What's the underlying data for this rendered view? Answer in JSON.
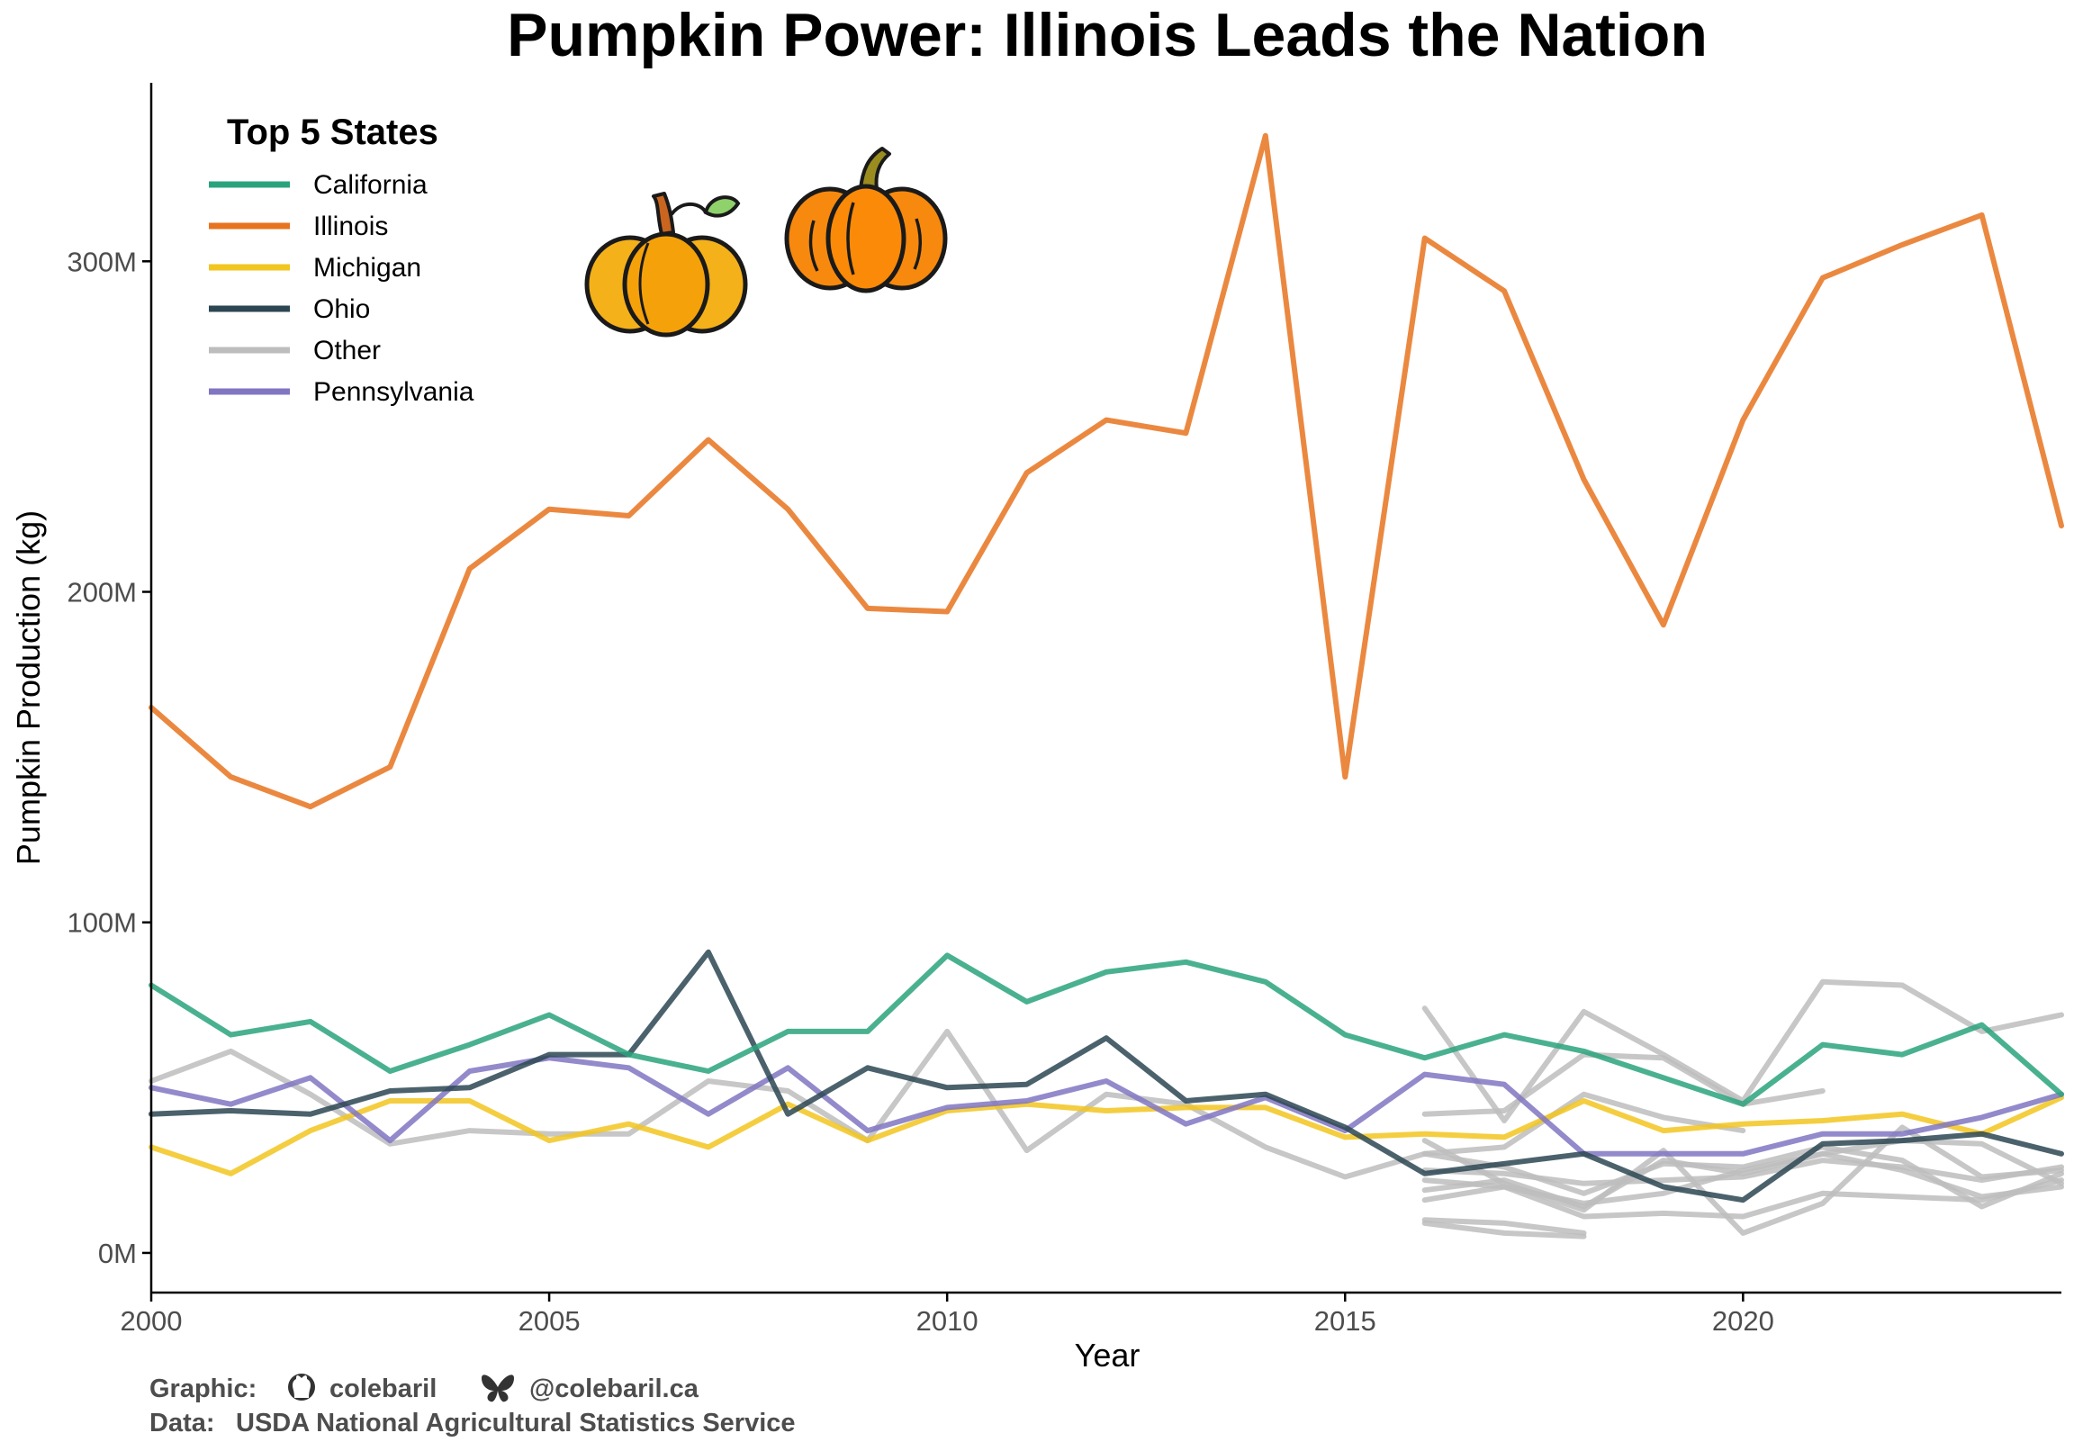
{
  "chart_data": {
    "type": "line",
    "title": "Pumpkin Power: Illinois Leads the Nation",
    "xlabel": "Year",
    "ylabel": "Pumpkin Production (kg)",
    "xlim": [
      2000,
      2024
    ],
    "ylim": [
      -12,
      354
    ],
    "x_ticks": [
      2000,
      2005,
      2010,
      2015,
      2020
    ],
    "x_tick_labels": [
      "2000",
      "2005",
      "2010",
      "2015",
      "2020"
    ],
    "y_ticks": [
      0,
      100,
      200,
      300
    ],
    "y_tick_labels": [
      "0M",
      "100M",
      "200M",
      "300M"
    ],
    "units": "million kg",
    "legend_title": "Top 5 States",
    "legend_position": "top-left",
    "series": [
      {
        "name": "California",
        "color": "#2aa37c",
        "x": [
          2000,
          2001,
          2002,
          2003,
          2004,
          2005,
          2006,
          2007,
          2008,
          2009,
          2010,
          2011,
          2012,
          2013,
          2014,
          2015,
          2016,
          2017,
          2018,
          2019,
          2020,
          2021,
          2022,
          2023,
          2024
        ],
        "y": [
          81,
          66,
          70,
          55,
          63,
          72,
          60,
          55,
          67,
          67,
          90,
          76,
          85,
          88,
          82,
          66,
          59,
          66,
          61,
          53,
          45,
          63,
          60,
          69,
          48
        ]
      },
      {
        "name": "Illinois",
        "color": "#e8731e",
        "x": [
          2000,
          2001,
          2002,
          2003,
          2004,
          2005,
          2006,
          2007,
          2008,
          2009,
          2010,
          2011,
          2012,
          2013,
          2014,
          2015,
          2016,
          2017,
          2018,
          2019,
          2020,
          2021,
          2022,
          2023,
          2024
        ],
        "y": [
          165,
          144,
          135,
          147,
          207,
          225,
          223,
          246,
          225,
          195,
          194,
          236,
          252,
          248,
          338,
          144,
          307,
          291,
          234,
          190,
          252,
          295,
          305,
          314,
          220
        ]
      },
      {
        "name": "Michigan",
        "color": "#f2c61f",
        "x": [
          2000,
          2001,
          2002,
          2003,
          2004,
          2005,
          2006,
          2007,
          2008,
          2009,
          2010,
          2011,
          2012,
          2013,
          2014,
          2015,
          2016,
          2017,
          2018,
          2019,
          2020,
          2021,
          2022,
          2023,
          2024
        ],
        "y": [
          32,
          24,
          37,
          46,
          46,
          34,
          39,
          32,
          45,
          34,
          43,
          45,
          43,
          44,
          44,
          35,
          36,
          35,
          46,
          37,
          39,
          40,
          42,
          36,
          47
        ]
      },
      {
        "name": "Ohio",
        "color": "#2c4652",
        "x": [
          2000,
          2001,
          2002,
          2003,
          2004,
          2005,
          2006,
          2007,
          2008,
          2009,
          2010,
          2011,
          2012,
          2013,
          2014,
          2015,
          2016,
          2017,
          2018,
          2019,
          2020,
          2021,
          2022,
          2023,
          2024
        ],
        "y": [
          42,
          43,
          42,
          49,
          50,
          60,
          60,
          91,
          42,
          56,
          50,
          51,
          65,
          46,
          48,
          38,
          24,
          27,
          30,
          20,
          16,
          33,
          34,
          36,
          30
        ]
      },
      {
        "name": "Pennsylvania",
        "color": "#8076c2",
        "x": [
          2000,
          2001,
          2002,
          2003,
          2004,
          2005,
          2006,
          2007,
          2008,
          2009,
          2010,
          2011,
          2012,
          2013,
          2014,
          2015,
          2016,
          2017,
          2018,
          2019,
          2020,
          2021,
          2022,
          2023,
          2024
        ],
        "y": [
          50,
          45,
          53,
          34,
          55,
          59,
          56,
          42,
          56,
          37,
          44,
          46,
          52,
          39,
          47,
          37,
          54,
          51,
          30,
          30,
          30,
          36,
          36,
          41,
          48
        ]
      }
    ],
    "other_series": {
      "name": "Other",
      "color": "#bdbdbd",
      "lines": [
        {
          "x": [
            2000,
            2001,
            2002,
            2003,
            2004,
            2005,
            2006,
            2007,
            2008,
            2009,
            2010,
            2011,
            2012,
            2013,
            2014,
            2015,
            2016,
            2017,
            2018,
            2019,
            2020
          ],
          "y": [
            52,
            61,
            48,
            33,
            37,
            36,
            36,
            52,
            49,
            34,
            67,
            31,
            48,
            45,
            32,
            23,
            30,
            32,
            48,
            41,
            37
          ]
        },
        {
          "x": [
            2016,
            2017,
            2018,
            2019,
            2020,
            2021
          ],
          "y": [
            42,
            43,
            60,
            59,
            45,
            49
          ]
        },
        {
          "x": [
            2016,
            2017,
            2018,
            2019,
            2020,
            2021,
            2022,
            2023,
            2024
          ],
          "y": [
            74,
            40,
            73,
            60,
            46,
            82,
            81,
            67,
            72
          ]
        },
        {
          "x": [
            2016,
            2017,
            2018,
            2019,
            2020,
            2021,
            2022,
            2023,
            2024
          ],
          "y": [
            34,
            21,
            13,
            31,
            6,
            15,
            38,
            23,
            25
          ]
        },
        {
          "x": [
            2016,
            2017,
            2018
          ],
          "y": [
            10,
            9,
            6
          ]
        },
        {
          "x": [
            2016,
            2017,
            2018
          ],
          "y": [
            9,
            6,
            5
          ]
        },
        {
          "x": [
            2016,
            2017,
            2018,
            2019,
            2020,
            2021,
            2022,
            2023,
            2024
          ],
          "y": [
            25,
            24,
            21,
            22,
            23,
            28,
            26,
            22,
            26
          ]
        },
        {
          "x": [
            2016,
            2017,
            2018,
            2019,
            2020,
            2021,
            2022,
            2023,
            2024
          ],
          "y": [
            16,
            20,
            11,
            12,
            11,
            18,
            17,
            16,
            22
          ]
        },
        {
          "x": [
            2016,
            2017,
            2018,
            2019,
            2020,
            2021,
            2022,
            2023,
            2024
          ],
          "y": [
            22,
            20,
            15,
            18,
            25,
            30,
            34,
            33,
            21
          ]
        },
        {
          "x": [
            2016,
            2017,
            2018,
            2019,
            2020,
            2021,
            2022,
            2023,
            2024
          ],
          "y": [
            30,
            26,
            18,
            27,
            26,
            32,
            28,
            14,
            24
          ]
        },
        {
          "x": [
            2016,
            2017,
            2018,
            2019,
            2020,
            2021,
            2022,
            2023,
            2024
          ],
          "y": [
            19,
            22,
            14,
            28,
            24,
            30,
            25,
            17,
            20
          ]
        }
      ]
    }
  },
  "caption": {
    "graphic_label": "Graphic:",
    "github_handle": "colebaril",
    "bluesky_handle": "@colebaril.ca",
    "data_label": "Data:",
    "data_source": "USDA National Agricultural Statistics Service"
  },
  "icons": [
    "github-icon",
    "butterfly-icon",
    "pumpkin-icon"
  ]
}
